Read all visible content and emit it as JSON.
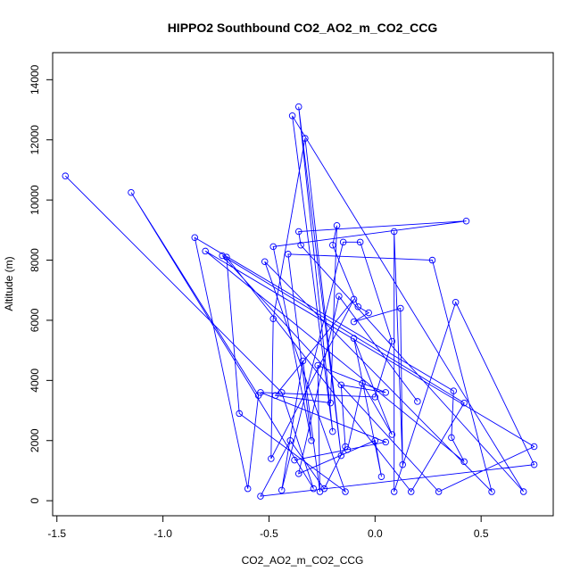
{
  "chart_data": {
    "type": "line",
    "title": "HIPPO2 Southbound CO2_AO2_m_CO2_CCG",
    "xlabel": "CO2_AO2_m_CO2_CCG",
    "ylabel": "Altitude (m)",
    "xlim": [
      -1.52,
      0.84
    ],
    "ylim": [
      -500,
      14900
    ],
    "x_ticks": [
      -1.5,
      -1.0,
      -0.5,
      0.0,
      0.5
    ],
    "x_tick_labels": [
      "-1.5",
      "-1.0",
      "-0.5",
      "0.0",
      "0.5"
    ],
    "y_ticks": [
      0,
      2000,
      4000,
      6000,
      8000,
      10000,
      12000,
      14000
    ],
    "y_tick_labels": [
      "0",
      "2000",
      "4000",
      "6000",
      "8000",
      "10000",
      "12000",
      "14000"
    ],
    "grid": false,
    "legend": "none",
    "series": [
      {
        "color": "#0000ff",
        "marker": "open-circle",
        "points": [
          [
            -1.46,
            10800
          ],
          [
            -0.44,
            3600
          ],
          [
            -0.29,
            400
          ],
          [
            -1.15,
            10250
          ],
          [
            -0.55,
            3500
          ],
          [
            -0.6,
            400
          ],
          [
            -0.85,
            8750
          ],
          [
            0.37,
            3650
          ],
          [
            0.36,
            2100
          ],
          [
            0.42,
            1300
          ],
          [
            -0.8,
            8300
          ],
          [
            0.75,
            1800
          ],
          [
            0.3,
            300
          ],
          [
            -0.72,
            8150
          ],
          [
            0.42,
            3250
          ],
          [
            0.17,
            300
          ],
          [
            -0.7,
            8100
          ],
          [
            -0.64,
            2900
          ],
          [
            -0.14,
            300
          ],
          [
            -0.52,
            7950
          ],
          [
            0.55,
            300
          ],
          [
            0.27,
            8000
          ],
          [
            -0.41,
            8200
          ],
          [
            -0.3,
            2000
          ],
          [
            -0.48,
            8450
          ],
          [
            0.43,
            9300
          ],
          [
            -0.36,
            8950
          ],
          [
            -0.35,
            8500
          ],
          [
            0.7,
            300
          ],
          [
            -0.39,
            12800
          ],
          [
            -0.2,
            2300
          ],
          [
            -0.36,
            13100
          ],
          [
            -0.16,
            1500
          ],
          [
            -0.33,
            12050
          ],
          [
            -0.48,
            6050
          ],
          [
            -0.49,
            1400
          ],
          [
            -0.1,
            6700
          ],
          [
            -0.47,
            3500
          ],
          [
            -0.21,
            3250
          ],
          [
            -0.18,
            9150
          ],
          [
            -0.2,
            8500
          ],
          [
            -0.08,
            6450
          ],
          [
            -0.03,
            6250
          ],
          [
            -0.1,
            5950
          ],
          [
            0.12,
            6400
          ],
          [
            0.13,
            1200
          ],
          [
            0.09,
            8950
          ],
          [
            0.09,
            300
          ],
          [
            0.38,
            6600
          ],
          [
            0.75,
            1200
          ],
          [
            -0.54,
            150
          ],
          [
            -0.4,
            2000
          ],
          [
            -0.24,
            400
          ],
          [
            -0.14,
            1800
          ],
          [
            -0.16,
            3850
          ],
          [
            0.05,
            3600
          ],
          [
            -0.27,
            4500
          ],
          [
            -0.26,
            300
          ],
          [
            -0.34,
            4650
          ],
          [
            -0.44,
            350
          ],
          [
            -0.15,
            8600
          ],
          [
            -0.07,
            8600
          ],
          [
            0.08,
            5300
          ],
          [
            0.0,
            3450
          ],
          [
            -0.54,
            3600
          ],
          [
            0.05,
            1950
          ],
          [
            -0.38,
            1350
          ],
          [
            -0.13,
            1700
          ],
          [
            -0.06,
            3900
          ],
          [
            0.08,
            2200
          ],
          [
            -0.1,
            5400
          ],
          [
            0.03,
            800
          ],
          [
            0.0,
            2000
          ],
          [
            -0.36,
            900
          ],
          [
            -0.17,
            6800
          ],
          [
            0.2,
            3300
          ]
        ]
      }
    ]
  }
}
